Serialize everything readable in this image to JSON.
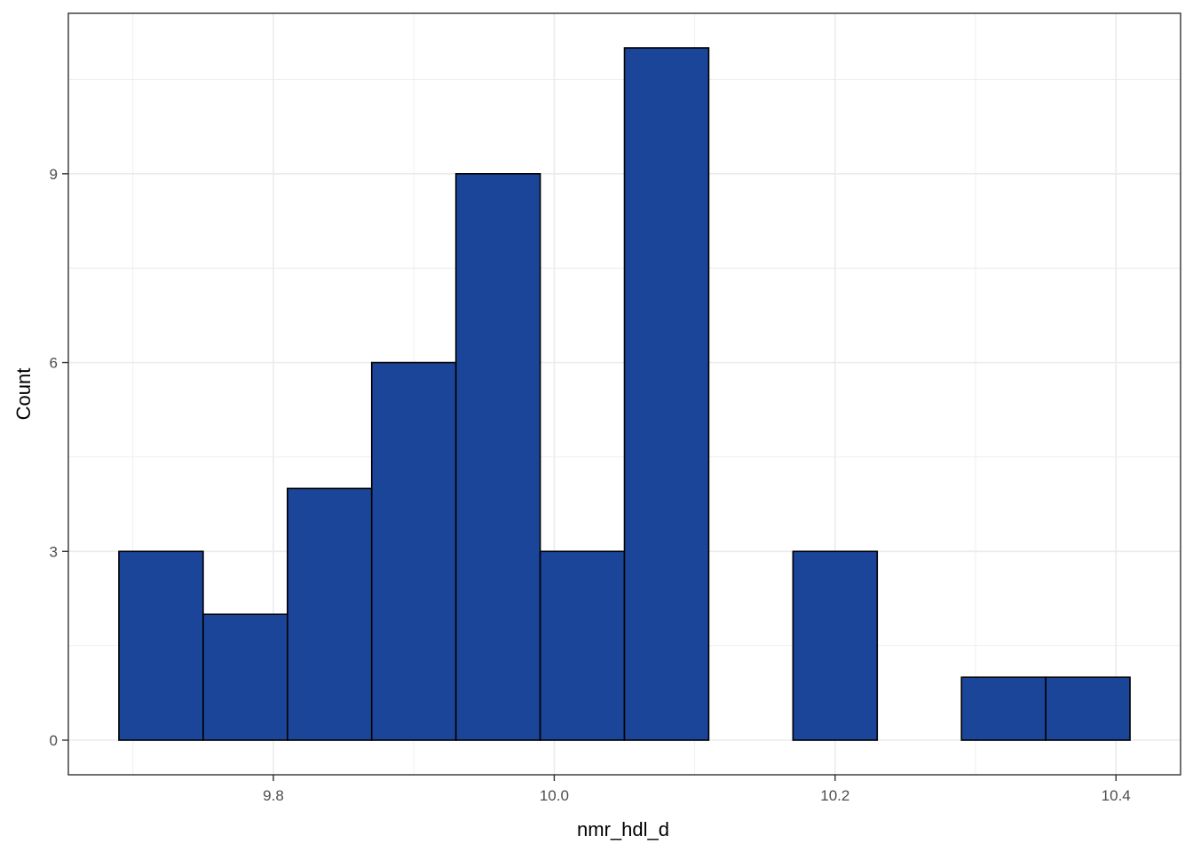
{
  "chart_data": {
    "type": "bar",
    "subtype": "histogram",
    "xlabel": "nmr_hdl_d",
    "ylabel": "Count",
    "bin_width": 0.06,
    "bins": [
      {
        "x0": 9.69,
        "x1": 9.75,
        "count": 3
      },
      {
        "x0": 9.75,
        "x1": 9.81,
        "count": 2
      },
      {
        "x0": 9.81,
        "x1": 9.87,
        "count": 4
      },
      {
        "x0": 9.87,
        "x1": 9.93,
        "count": 6
      },
      {
        "x0": 9.93,
        "x1": 9.99,
        "count": 9
      },
      {
        "x0": 9.99,
        "x1": 10.05,
        "count": 3
      },
      {
        "x0": 10.05,
        "x1": 10.11,
        "count": 11
      },
      {
        "x0": 10.11,
        "x1": 10.17,
        "count": 0
      },
      {
        "x0": 10.17,
        "x1": 10.23,
        "count": 3
      },
      {
        "x0": 10.23,
        "x1": 10.29,
        "count": 0
      },
      {
        "x0": 10.29,
        "x1": 10.35,
        "count": 1
      },
      {
        "x0": 10.35,
        "x1": 10.41,
        "count": 1
      }
    ],
    "xlim": [
      9.654,
      10.446
    ],
    "ylim": [
      -0.55,
      11.55
    ],
    "x_ticks": [
      9.8,
      10.0,
      10.2,
      10.4
    ],
    "x_tick_labels": [
      "9.8",
      "10.0",
      "10.2",
      "10.4"
    ],
    "x_minor_ticks": [
      9.7,
      9.9,
      10.1,
      10.3
    ],
    "y_ticks": [
      0,
      3,
      6,
      9
    ],
    "y_tick_labels": [
      "0",
      "3",
      "6",
      "9"
    ],
    "y_minor_ticks": [
      1.5,
      4.5,
      7.5,
      10.5
    ],
    "grid": true,
    "legend": "none",
    "colors": {
      "bar_fill": "#1a4599",
      "bar_outline": "#000000",
      "grid": "#ebebeb",
      "panel_border": "#333333",
      "background": "#ffffff"
    }
  }
}
